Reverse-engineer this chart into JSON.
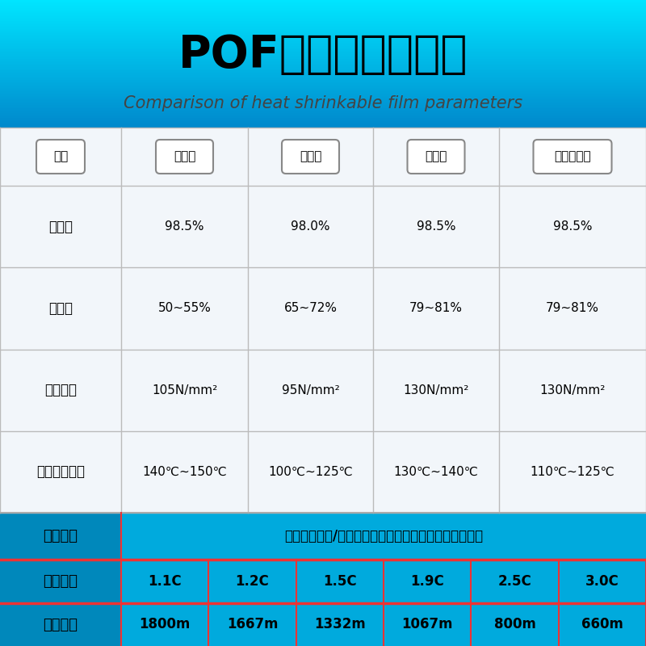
{
  "title_cn": "POF热缩膜参数对比",
  "title_en": "Comparison of heat shrinkable film parameters",
  "header_labels": [
    "属性",
    "标准膜",
    "低温膜",
    "交联膜",
    "低温交联膜"
  ],
  "rows": [
    {
      "attr": "透明度",
      "values": [
        "98.5%",
        "98.0%",
        "98.5%",
        "98.5%"
      ]
    },
    {
      "attr": "收缩率",
      "values": [
        "50~55%",
        "65~72%",
        "79~81%",
        "79~81%"
      ]
    },
    {
      "attr": "抗拉伸性",
      "values": [
        "105N/mm²",
        "95N/mm²",
        "130N/mm²",
        "130N/mm²"
      ]
    },
    {
      "attr": "收缩建议温度",
      "values": [
        "140℃~150℃",
        "100℃~125℃",
        "130℃~140℃",
        "110℃~125℃"
      ]
    }
  ],
  "craft_label": "产品工艺",
  "craft_value": "支持预打排孔/支持印刷（具体工艺事项咨询客服人员）",
  "thickness_label": "产品厚度",
  "thickness_values": [
    "1.1C",
    "1.2C",
    "1.5C",
    "1.9C",
    "2.5C",
    "3.0C"
  ],
  "length_label": "产品长度",
  "length_values": [
    "1800m",
    "1667m",
    "1332m",
    "1067m",
    "800m",
    "660m"
  ],
  "grid_color": "#BBBBBB",
  "table_bg": "#F0F4F8",
  "bottom_bg": "#00AADD",
  "craft_label_bg": "#0088BB",
  "red_line": "#EE3333"
}
